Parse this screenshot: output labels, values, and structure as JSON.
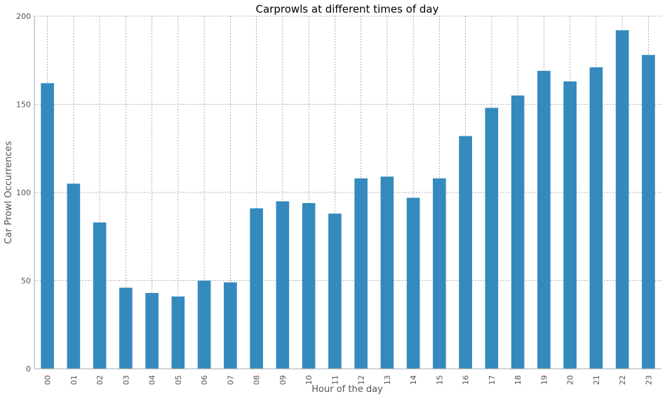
{
  "chart_data": {
    "type": "bar",
    "title": "Carprowls at different times of day",
    "xlabel": "Hour of the day",
    "ylabel": "Car Prowl Occurrences",
    "categories": [
      "00",
      "01",
      "02",
      "03",
      "04",
      "05",
      "06",
      "07",
      "08",
      "09",
      "10",
      "11",
      "12",
      "13",
      "14",
      "15",
      "16",
      "17",
      "18",
      "19",
      "20",
      "21",
      "22",
      "23"
    ],
    "values": [
      162,
      105,
      83,
      46,
      43,
      41,
      50,
      49,
      91,
      95,
      94,
      88,
      108,
      109,
      97,
      108,
      132,
      148,
      155,
      169,
      163,
      171,
      192,
      178
    ],
    "ylim": [
      0,
      200
    ],
    "yticks": [
      0,
      50,
      100,
      150,
      200
    ],
    "grid": true,
    "legend": "none",
    "colors": {
      "bar": "#348abd",
      "grid": "#999999",
      "axis": "#aaaaaa",
      "text": "#555555"
    }
  }
}
